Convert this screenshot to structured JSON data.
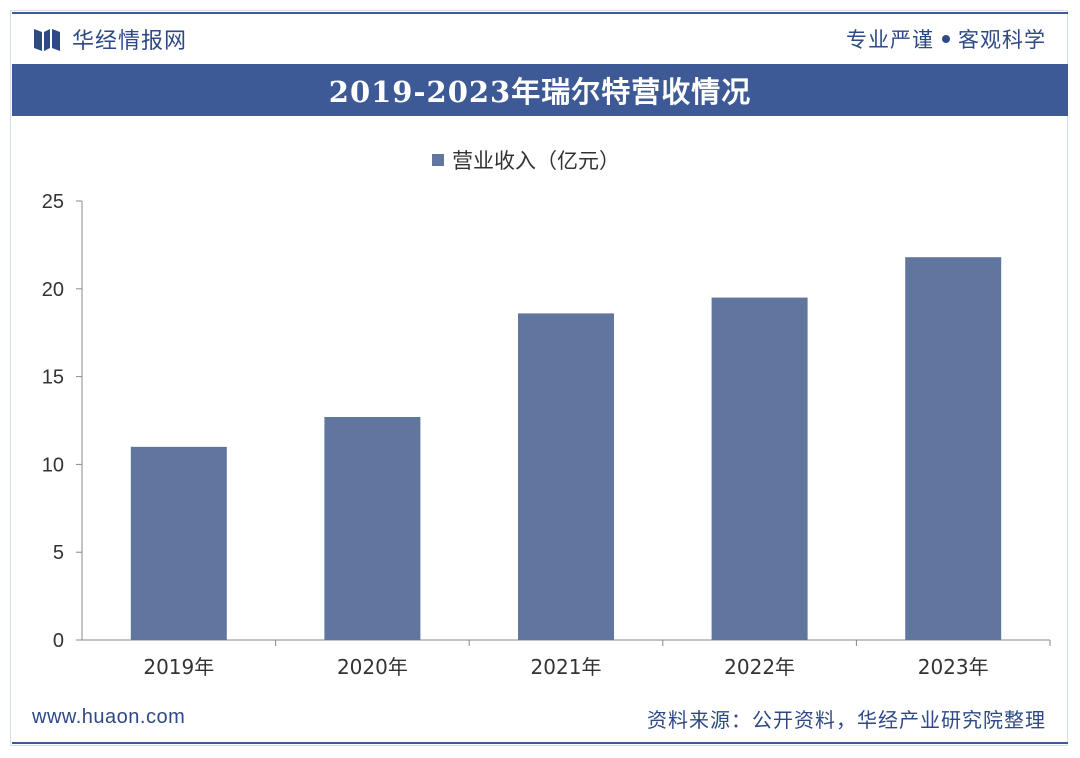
{
  "header": {
    "brand_name": "华经情报网",
    "tagline_left": "专业严谨",
    "tagline_right": "客观科学",
    "logo_icon": "huajing-logo-icon"
  },
  "title": "2019-2023年瑞尔特营收情况",
  "footer": {
    "url": "www.huaon.com",
    "source": "资料来源：公开资料，华经产业研究院整理"
  },
  "colors": {
    "brand": "#3d5a96",
    "bar": "#61769f",
    "axis": "#888888"
  },
  "chart_data": {
    "type": "bar",
    "title": "2019-2023年瑞尔特营收情况",
    "categories": [
      "2019年",
      "2020年",
      "2021年",
      "2022年",
      "2023年"
    ],
    "series": [
      {
        "name": "营业收入（亿元）",
        "values": [
          11.0,
          12.7,
          18.6,
          19.5,
          21.8
        ]
      }
    ],
    "ylim": [
      0,
      25
    ],
    "yticks": [
      0,
      5,
      10,
      15,
      20,
      25
    ],
    "xlabel": "",
    "ylabel": "",
    "grid": false,
    "legend": "top-center"
  }
}
